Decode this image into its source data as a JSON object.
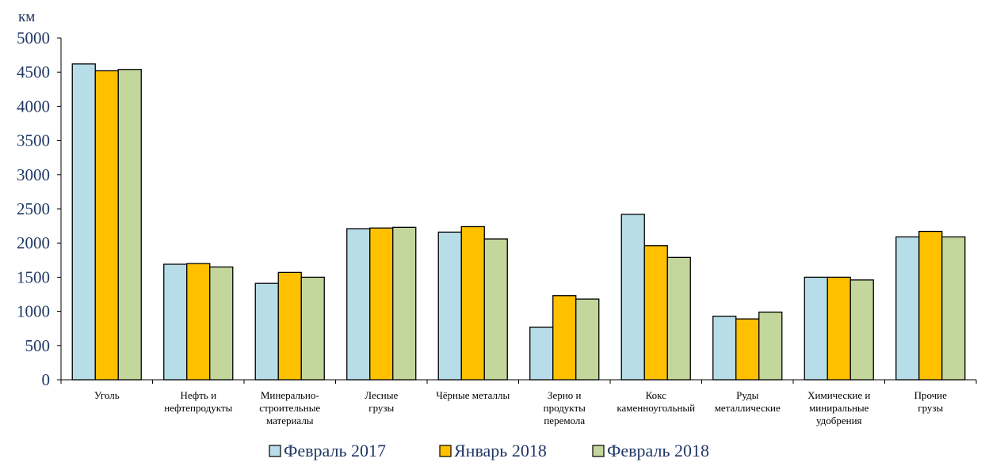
{
  "chart_data": {
    "type": "bar",
    "title": "",
    "ylabel": "км",
    "xlabel": "",
    "ylim": [
      0,
      5000
    ],
    "yticks": [
      0,
      500,
      1000,
      1500,
      2000,
      2500,
      3000,
      3500,
      4000,
      4500,
      5000
    ],
    "grid": false,
    "legend_position": "bottom",
    "categories": [
      [
        "Уголь"
      ],
      [
        "Нефть и",
        "нефтепродукты"
      ],
      [
        "Минерально-",
        "строительные",
        "материалы"
      ],
      [
        "Лесные",
        "грузы"
      ],
      [
        "Чёрные металлы"
      ],
      [
        "Зерно и",
        "продукты",
        "перемола"
      ],
      [
        "Кокс",
        "каменноугольный"
      ],
      [
        "Руды",
        "металлические"
      ],
      [
        "Химические и",
        "минираль­ные",
        "удобрения"
      ],
      [
        "Прочие",
        "грузы"
      ]
    ],
    "series": [
      {
        "name": "Февраль 2017",
        "color": "#b7dde8",
        "values": [
          4620,
          1690,
          1410,
          2210,
          2160,
          770,
          2420,
          930,
          1500,
          2090
        ]
      },
      {
        "name": "Январь 2018",
        "color": "#ffc000",
        "values": [
          4520,
          1700,
          1570,
          2220,
          2240,
          1230,
          1960,
          890,
          1500,
          2170
        ]
      },
      {
        "name": "Февраль 2018",
        "color": "#c3d69b",
        "values": [
          4540,
          1650,
          1500,
          2230,
          2060,
          1180,
          1790,
          990,
          1460,
          2090
        ]
      }
    ]
  }
}
